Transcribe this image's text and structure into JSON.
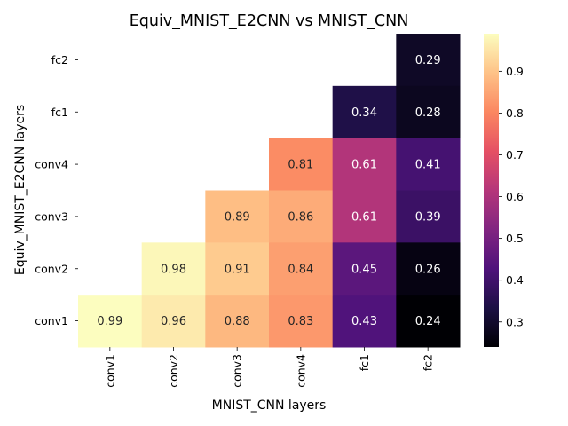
{
  "chart_data": {
    "type": "heatmap",
    "title": "Equiv_MNIST_E2CNN vs MNIST_CNN",
    "xlabel": "MNIST_CNN layers",
    "ylabel": "Equiv_MNIST_E2CNN layers",
    "x_categories": [
      "conv1",
      "conv2",
      "conv3",
      "conv4",
      "fc1",
      "fc2"
    ],
    "y_categories": [
      "fc2",
      "fc1",
      "conv4",
      "conv3",
      "conv2",
      "conv1"
    ],
    "values": [
      [
        null,
        null,
        null,
        null,
        null,
        0.29
      ],
      [
        null,
        null,
        null,
        null,
        0.34,
        0.28
      ],
      [
        null,
        null,
        null,
        0.81,
        0.61,
        0.41
      ],
      [
        null,
        null,
        0.89,
        0.86,
        0.61,
        0.39
      ],
      [
        null,
        0.98,
        0.91,
        0.84,
        0.45,
        0.26
      ],
      [
        0.99,
        0.96,
        0.88,
        0.83,
        0.43,
        0.24
      ]
    ],
    "value_labels": [
      [
        "",
        "",
        "",
        "",
        "",
        "0.29"
      ],
      [
        "",
        "",
        "",
        "",
        "0.34",
        "0.28"
      ],
      [
        "",
        "",
        "",
        "0.81",
        "0.61",
        "0.41"
      ],
      [
        "",
        "",
        "0.89",
        "0.86",
        "0.61",
        "0.39"
      ],
      [
        "",
        "0.98",
        "0.91",
        "0.84",
        "0.45",
        "0.26"
      ],
      [
        "0.99",
        "0.96",
        "0.88",
        "0.83",
        "0.43",
        "0.24"
      ]
    ],
    "colormap": "magma",
    "vmin": 0.24,
    "vmax": 0.99,
    "colorbar_ticks": [
      0.3,
      0.4,
      0.5,
      0.6,
      0.7,
      0.8,
      0.9
    ],
    "colorbar_tick_labels": [
      "0.3",
      "0.4",
      "0.5",
      "0.6",
      "0.7",
      "0.8",
      "0.9"
    ],
    "legend": "right"
  }
}
